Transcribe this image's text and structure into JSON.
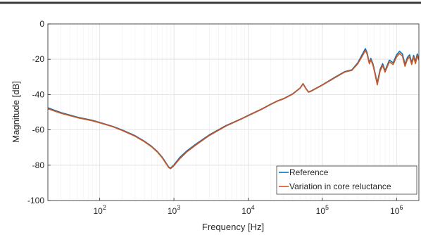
{
  "chart_data": {
    "type": "line",
    "title": "",
    "xlabel": "Frequency [Hz]",
    "ylabel": "Magnitude [dB]",
    "xscale": "log",
    "xlim": [
      20,
      2000000
    ],
    "ylim": [
      -100,
      0
    ],
    "grid": true,
    "legend_position": "bottom-right",
    "x_ticks": [
      {
        "value": 100,
        "base": "10",
        "exp": "2"
      },
      {
        "value": 1000,
        "base": "10",
        "exp": "3"
      },
      {
        "value": 10000,
        "base": "10",
        "exp": "4"
      },
      {
        "value": 100000,
        "base": "10",
        "exp": "5"
      },
      {
        "value": 1000000,
        "base": "10",
        "exp": "6"
      }
    ],
    "y_ticks": [
      0,
      -20,
      -40,
      -60,
      -80,
      -100
    ],
    "series": [
      {
        "name": "Reference",
        "color": "#0072BD",
        "x": [
          20,
          30,
          50,
          80,
          100,
          150,
          200,
          300,
          400,
          500,
          600,
          700,
          800,
          850,
          900,
          1000,
          1200,
          1500,
          2000,
          3000,
          5000,
          8000,
          10000,
          15000,
          20000,
          25000,
          30000,
          40000,
          50000,
          55000,
          60000,
          65000,
          70000,
          100000,
          150000,
          200000,
          250000,
          300000,
          350000,
          380000,
          400000,
          430000,
          450000,
          480000,
          500000,
          550000,
          600000,
          650000,
          700000,
          800000,
          900000,
          1000000,
          1100000,
          1200000,
          1300000,
          1400000,
          1500000,
          1600000,
          1700000,
          1800000,
          1900000,
          2000000
        ],
        "values": [
          -47.5,
          -50.2,
          -52.8,
          -54.6,
          -55.8,
          -58.0,
          -60.0,
          -63.3,
          -66.4,
          -69.3,
          -72.3,
          -75.6,
          -79.3,
          -81.0,
          -81.6,
          -79.8,
          -75.6,
          -71.8,
          -67.9,
          -62.8,
          -57.6,
          -53.8,
          -51.8,
          -48.3,
          -45.5,
          -43.5,
          -42.3,
          -39.5,
          -36.3,
          -33.8,
          -36.5,
          -38.5,
          -38.0,
          -34.5,
          -30.0,
          -27.0,
          -26.0,
          -22.0,
          -16.8,
          -14.0,
          -16.2,
          -22.0,
          -19.5,
          -22.5,
          -25.5,
          -33.5,
          -25.8,
          -22.5,
          -26.5,
          -20.5,
          -22.0,
          -17.5,
          -15.5,
          -17.0,
          -23.0,
          -19.0,
          -17.5,
          -22.0,
          -17.8,
          -21.5,
          -17.0,
          -19.5
        ]
      },
      {
        "name": "Variation in core reluctance",
        "color": "#D95319",
        "x": [
          20,
          30,
          50,
          80,
          100,
          150,
          200,
          300,
          400,
          500,
          600,
          700,
          800,
          850,
          900,
          1000,
          1200,
          1500,
          2000,
          3000,
          5000,
          8000,
          10000,
          15000,
          20000,
          25000,
          30000,
          40000,
          50000,
          55000,
          60000,
          65000,
          70000,
          100000,
          150000,
          200000,
          250000,
          300000,
          350000,
          380000,
          400000,
          430000,
          450000,
          480000,
          500000,
          550000,
          600000,
          650000,
          700000,
          800000,
          900000,
          1000000,
          1100000,
          1200000,
          1300000,
          1400000,
          1500000,
          1600000,
          1700000,
          1800000,
          1900000,
          2000000
        ],
        "values": [
          -48.0,
          -50.6,
          -53.1,
          -54.9,
          -56.0,
          -58.2,
          -60.3,
          -63.6,
          -66.7,
          -69.6,
          -72.6,
          -76.0,
          -79.7,
          -81.3,
          -82.0,
          -80.3,
          -76.3,
          -72.4,
          -68.4,
          -63.2,
          -57.9,
          -54.0,
          -52.0,
          -48.5,
          -45.7,
          -43.7,
          -42.5,
          -39.7,
          -36.5,
          -34.0,
          -36.7,
          -38.7,
          -38.2,
          -34.7,
          -30.3,
          -27.3,
          -26.3,
          -22.6,
          -17.8,
          -15.0,
          -17.0,
          -22.6,
          -20.3,
          -23.3,
          -26.3,
          -34.5,
          -26.8,
          -23.5,
          -27.3,
          -21.5,
          -23.0,
          -18.7,
          -16.7,
          -18.2,
          -24.0,
          -20.0,
          -18.7,
          -23.0,
          -18.8,
          -22.5,
          -18.0,
          -20.5
        ]
      }
    ]
  }
}
